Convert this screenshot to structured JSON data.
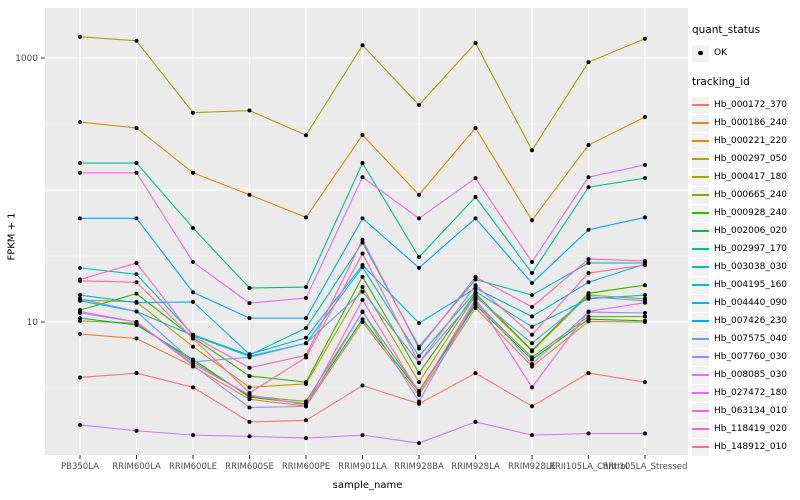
{
  "figure": {
    "background": "#FFFFFF"
  },
  "panel": {
    "bg": "#EBEBEB",
    "grid_color": "#FFFFFF",
    "tick_color": "#333333",
    "tick_label_color": "#4D4D4D",
    "point_color": "#000000"
  },
  "axes": {
    "y": {
      "title": "FPKM + 1",
      "scale": "log10",
      "tick_labels": [
        "1000",
        "10"
      ],
      "tick_values": [
        1000,
        10
      ]
    },
    "x": {
      "title": "sample_name",
      "categories": [
        "PB350LA",
        "RRIM600LA",
        "RRIM600LE",
        "RRIM600SE",
        "RRIM600PE",
        "RRIM901LA",
        "RRIM928BA",
        "RRIM928LA",
        "RRIM928LE",
        "RRII105LA_Control",
        "RRII105LA_Stressed"
      ]
    }
  },
  "legend": {
    "quant_status": {
      "title": "quant_status",
      "items": [
        {
          "label": "OK",
          "shape": "point",
          "color": "#000000"
        }
      ]
    },
    "tracking_id": {
      "title": "tracking_id",
      "items": [
        {
          "label": "Hb_000172_370",
          "color": "#F8766D"
        },
        {
          "label": "Hb_000186_240",
          "color": "#E8832F"
        },
        {
          "label": "Hb_000221_220",
          "color": "#D89000"
        },
        {
          "label": "Hb_000297_050",
          "color": "#C09B00"
        },
        {
          "label": "Hb_000417_180",
          "color": "#A3A500"
        },
        {
          "label": "Hb_000665_240",
          "color": "#7CAE00"
        },
        {
          "label": "Hb_000928_240",
          "color": "#39B600"
        },
        {
          "label": "Hb_002006_020",
          "color": "#00BB4E"
        },
        {
          "label": "Hb_002997_170",
          "color": "#00C087"
        },
        {
          "label": "Hb_003038_030",
          "color": "#00C0AF"
        },
        {
          "label": "Hb_004195_160",
          "color": "#00BDD0"
        },
        {
          "label": "Hb_004440_090",
          "color": "#00B4EF"
        },
        {
          "label": "Hb_007426_230",
          "color": "#00A5FF"
        },
        {
          "label": "Hb_007575_040",
          "color": "#619CFF"
        },
        {
          "label": "Hb_007760_030",
          "color": "#9C8DFF"
        },
        {
          "label": "Hb_008085_030",
          "color": "#C77CFF"
        },
        {
          "label": "Hb_027472_180",
          "color": "#E76BF3"
        },
        {
          "label": "Hb_063134_010",
          "color": "#F763E0"
        },
        {
          "label": "Hb_118419_020",
          "color": "#FF62BC"
        },
        {
          "label": "Hb_148912_010",
          "color": "#FF6A9A"
        }
      ]
    }
  },
  "chart_data": {
    "type": "line",
    "title": "",
    "xlabel": "sample_name",
    "ylabel": "FPKM + 1",
    "y_scale": "log10",
    "ylim": [
      1,
      2400
    ],
    "grid": "on",
    "legend_position": "right",
    "point_shape": "filled-black-circle",
    "y_major_gridlines": [
      10,
      100,
      1000
    ],
    "y_minor_gridlines": [
      3.162,
      31.62,
      316.2
    ],
    "categories": [
      "PB350LA",
      "RRIM600LA",
      "RRIM600LE",
      "RRIM600SE",
      "RRIM600PE",
      "RRIM901LA",
      "RRIM928BA",
      "RRIM928LA",
      "RRIM928LE",
      "RRII105LA_Control",
      "RRII105LA_Stressed"
    ],
    "series": [
      {
        "name": "Hb_000172_370",
        "color": "#F8766D",
        "values": [
          3.8,
          4.1,
          3.2,
          1.75,
          1.8,
          3.3,
          2.4,
          4.1,
          2.3,
          4.1,
          3.5
        ]
      },
      {
        "name": "Hb_000186_240",
        "color": "#E8832F",
        "values": [
          8.1,
          7.5,
          4.6,
          2.6,
          2.3,
          10,
          2.8,
          12.8,
          4.6,
          10.1,
          10
        ]
      },
      {
        "name": "Hb_000221_220",
        "color": "#D89000",
        "values": [
          327,
          295,
          135,
          92,
          62,
          261,
          92,
          295,
          59,
          219,
          357
        ]
      },
      {
        "name": "Hb_000297_050",
        "color": "#C09B00",
        "values": [
          14.7,
          14.2,
          6.5,
          3.2,
          3.4,
          18.4,
          3.5,
          16,
          6.0,
          16,
          15
        ]
      },
      {
        "name": "Hb_000417_180",
        "color": "#A3A500",
        "values": [
          1450,
          1350,
          385,
          400,
          260,
          1250,
          440,
          1300,
          200,
          930,
          1400
        ]
      },
      {
        "name": "Hb_000665_240",
        "color": "#7CAE00",
        "values": [
          10.2,
          9.8,
          5.0,
          2.75,
          2.5,
          11.9,
          3.0,
          14,
          5.4,
          11,
          11
        ]
      },
      {
        "name": "Hb_000928_240",
        "color": "#39B600",
        "values": [
          12.3,
          16.4,
          7.6,
          3.9,
          3.5,
          22,
          4.1,
          16.5,
          6.1,
          16.5,
          19
        ]
      },
      {
        "name": "Hb_002006_020",
        "color": "#00BB4E",
        "values": [
          10.7,
          9.5,
          5.2,
          2.7,
          2.4,
          10.5,
          2.95,
          13.5,
          5.2,
          10.5,
          10.2
        ]
      },
      {
        "name": "Hb_002997_170",
        "color": "#00C087",
        "values": [
          160,
          160,
          51.5,
          18.1,
          18.4,
          160,
          31,
          88.5,
          23.5,
          105,
          123
        ]
      },
      {
        "name": "Hb_003038_030",
        "color": "#00C0AF",
        "values": [
          25.7,
          23,
          8.0,
          5.6,
          9.0,
          40,
          6.5,
          21,
          16,
          28,
          28
        ]
      },
      {
        "name": "Hb_004195_160",
        "color": "#00BDD0",
        "values": [
          14.5,
          12,
          7.9,
          5.5,
          6.9,
          26,
          5.5,
          17,
          9.2,
          15,
          16
        ]
      },
      {
        "name": "Hb_004440_090",
        "color": "#00B4EF",
        "values": [
          16,
          14,
          14.2,
          5.7,
          7.6,
          27,
          9.8,
          18,
          11,
          20,
          27.5
        ]
      },
      {
        "name": "Hb_007426_230",
        "color": "#00A5FF",
        "values": [
          61,
          61,
          16.8,
          10.7,
          10.7,
          61,
          25.7,
          61,
          19.7,
          50,
          62
        ]
      },
      {
        "name": "Hb_007575_040",
        "color": "#619CFF",
        "values": [
          15,
          12,
          5.0,
          5.4,
          6.9,
          17,
          4.9,
          15.5,
          6.9,
          15.5,
          14.5
        ]
      },
      {
        "name": "Hb_007760_030",
        "color": "#9C8DFF",
        "values": [
          11.7,
          10,
          4.7,
          2.25,
          2.3,
          12,
          2.5,
          14.7,
          4.8,
          11.9,
          11.7
        ]
      },
      {
        "name": "Hb_008085_030",
        "color": "#C77CFF",
        "values": [
          1.66,
          1.5,
          1.39,
          1.36,
          1.32,
          1.39,
          1.21,
          1.75,
          1.39,
          1.43,
          1.43
        ]
      },
      {
        "name": "Hb_027472_180",
        "color": "#E76BF3",
        "values": [
          135,
          135,
          28.5,
          13.9,
          15.2,
          125,
          61,
          123,
          28.5,
          125,
          155
        ]
      },
      {
        "name": "Hb_063134_010",
        "color": "#F763E0",
        "values": [
          12,
          10,
          4.8,
          2.8,
          2.35,
          14.7,
          2.9,
          15,
          3.2,
          12,
          14
        ]
      },
      {
        "name": "Hb_118419_020",
        "color": "#FF62BC",
        "values": [
          21,
          28,
          7.8,
          4.5,
          5.6,
          42,
          6.3,
          22,
          13,
          30,
          29
        ]
      },
      {
        "name": "Hb_148912_010",
        "color": "#FF6A9A",
        "values": [
          20.5,
          20,
          7.5,
          2.9,
          5.4,
          33,
          4.9,
          19,
          8.0,
          23.5,
          27
        ]
      }
    ]
  }
}
